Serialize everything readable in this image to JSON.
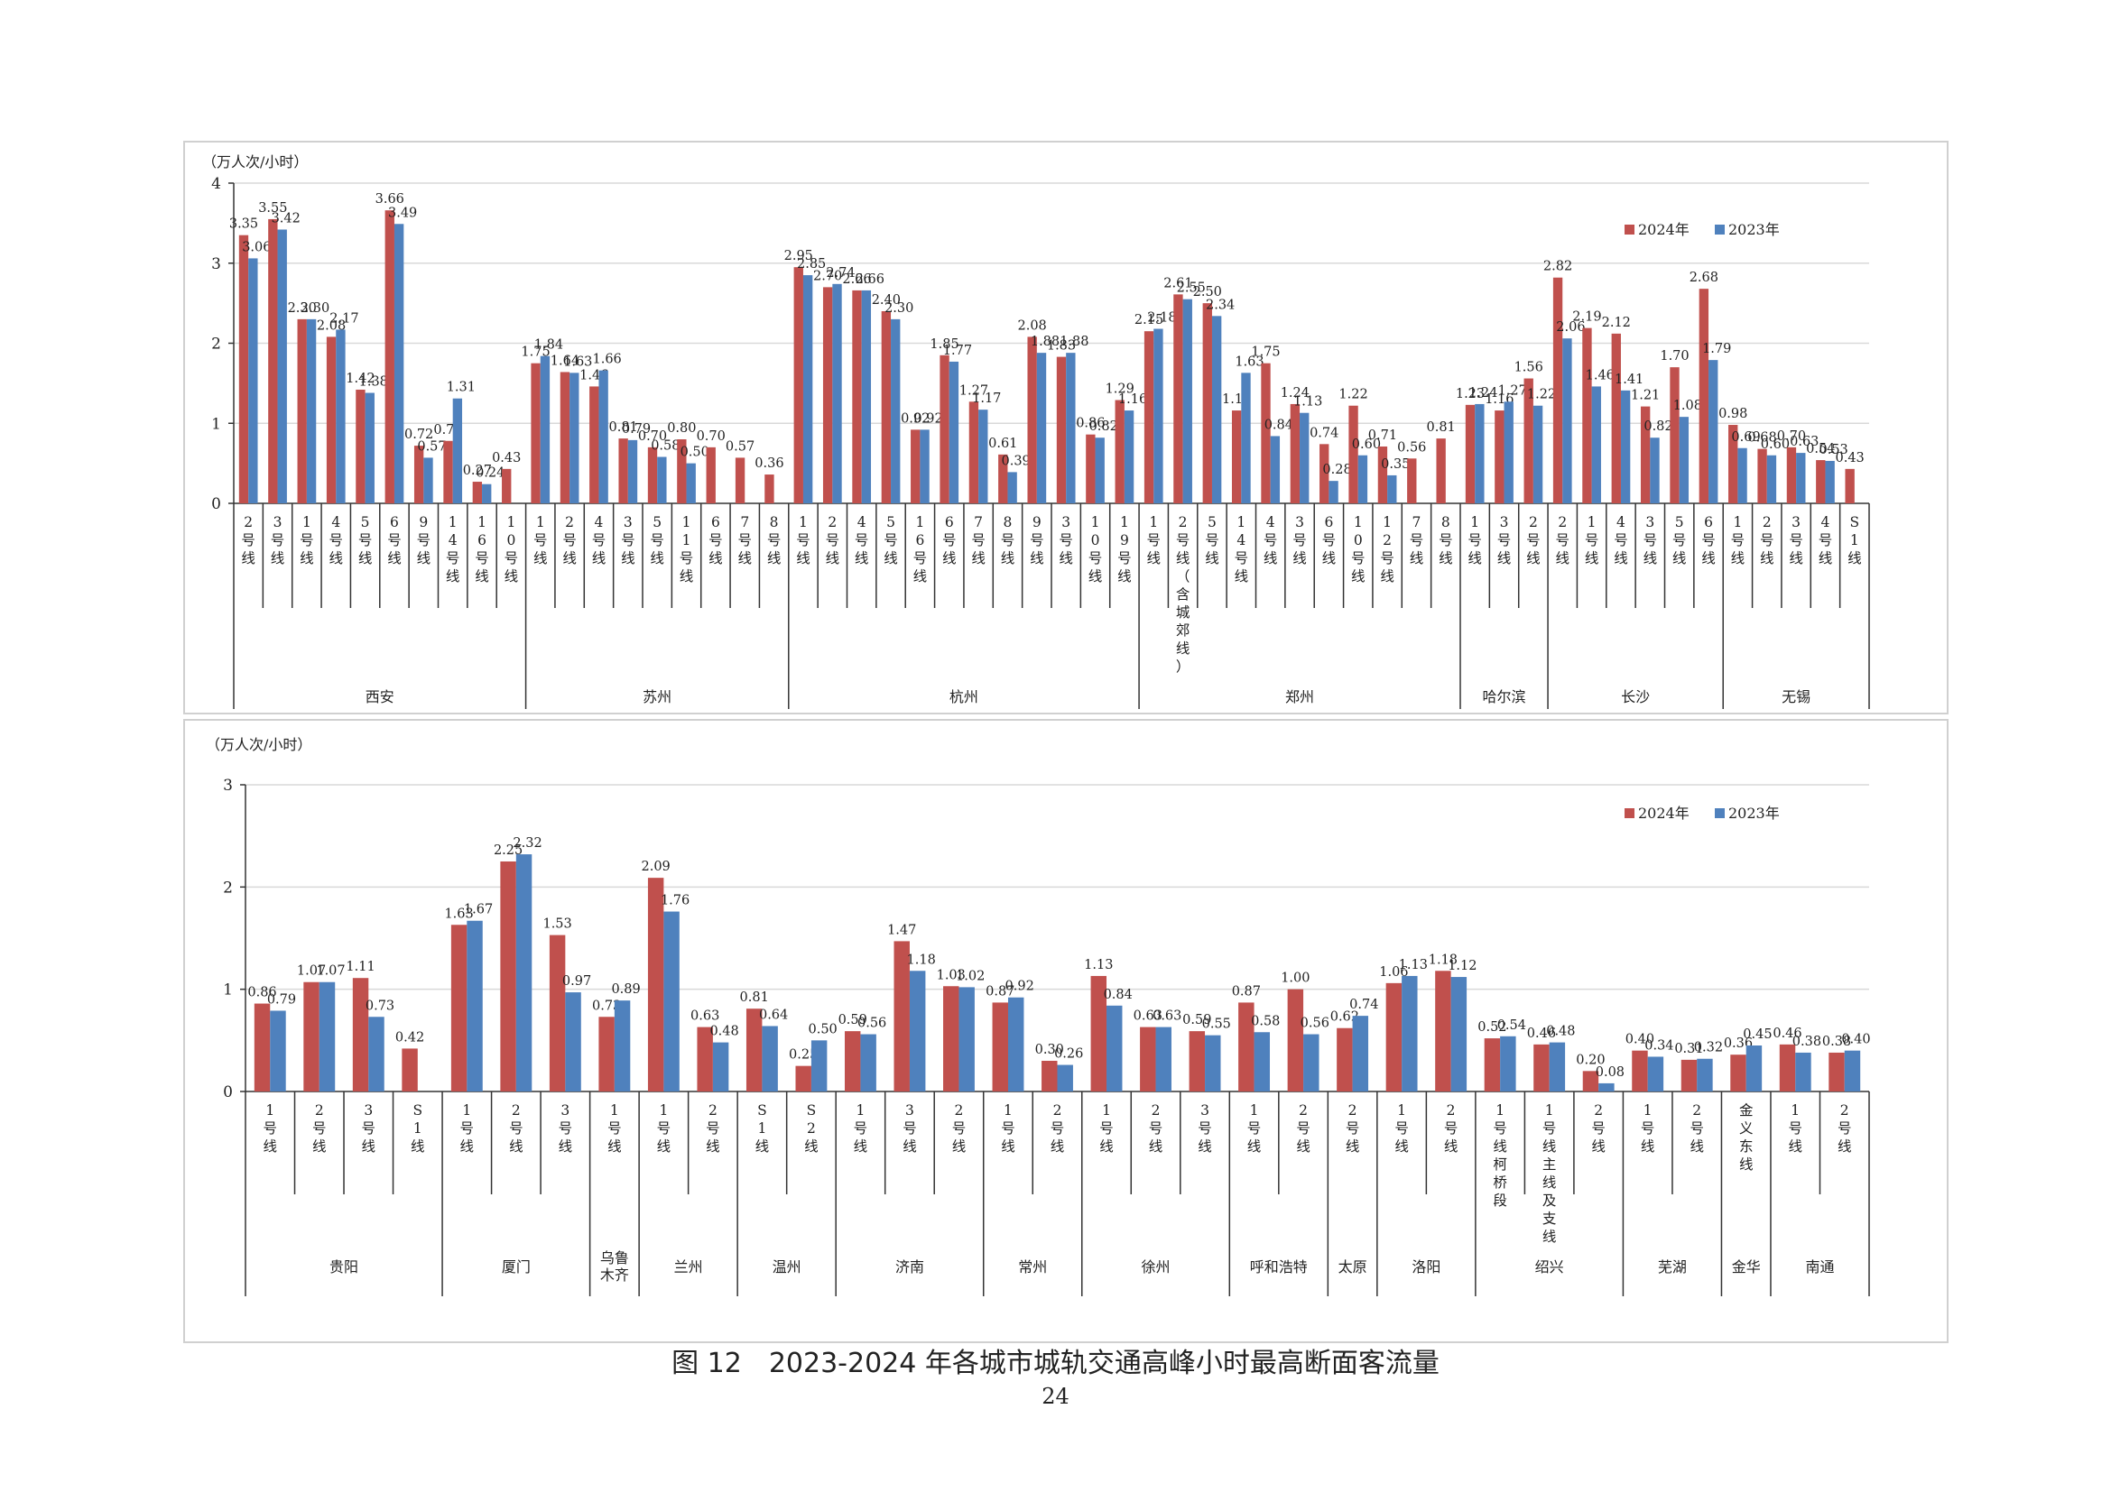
{
  "chart_data": [
    {
      "type": "bar",
      "unit_label": "（万人次/小时）",
      "ylim": [
        0,
        4
      ],
      "yticks": [
        "0",
        "1",
        "2",
        "3",
        "4"
      ],
      "legend": [
        "2024年",
        "2023年"
      ],
      "legend_position": "top-right",
      "colors": {
        "y2024": "#c0504d",
        "y2023": "#4f81bd"
      },
      "groups": [
        {
          "city": "西安",
          "lines": [
            {
              "label": "2号线",
              "v2024": 3.35,
              "v2023": 3.06
            },
            {
              "label": "3号线",
              "v2024": 3.55,
              "v2023": 3.42
            },
            {
              "label": "1号线",
              "v2024": 2.3,
              "v2023": 2.3
            },
            {
              "label": "4号线",
              "v2024": 2.08,
              "v2023": 2.17
            },
            {
              "label": "5号线",
              "v2024": 1.42,
              "v2023": 1.38
            },
            {
              "label": "6号线",
              "v2024": 3.66,
              "v2023": 3.49
            },
            {
              "label": "9号线",
              "v2024": 0.72,
              "v2023": 0.57
            },
            {
              "label": "14号线",
              "v2024": 0.78,
              "v2023": 1.31
            },
            {
              "label": "16号线",
              "v2024": 0.27,
              "v2023": 0.24
            },
            {
              "label": "10号线",
              "v2024": 0.43,
              "v2023": null
            }
          ]
        },
        {
          "city": "苏州",
          "lines": [
            {
              "label": "1号线",
              "v2024": 1.75,
              "v2023": 1.84
            },
            {
              "label": "2号线",
              "v2024": 1.64,
              "v2023": 1.63
            },
            {
              "label": "4号线",
              "v2024": 1.46,
              "v2023": 1.66
            },
            {
              "label": "3号线",
              "v2024": 0.81,
              "v2023": 0.79
            },
            {
              "label": "5号线",
              "v2024": 0.7,
              "v2023": 0.58
            },
            {
              "label": "11号线",
              "v2024": 0.8,
              "v2023": 0.5
            },
            {
              "label": "6号线",
              "v2024": 0.7,
              "v2023": null
            },
            {
              "label": "7号线",
              "v2024": 0.57,
              "v2023": null
            },
            {
              "label": "8号线",
              "v2024": 0.36,
              "v2023": null
            }
          ]
        },
        {
          "city": "杭州",
          "lines": [
            {
              "label": "1号线",
              "v2024": 2.95,
              "v2023": 2.85
            },
            {
              "label": "2号线",
              "v2024": 2.7,
              "v2023": 2.74
            },
            {
              "label": "4号线",
              "v2024": 2.66,
              "v2023": 2.66
            },
            {
              "label": "5号线",
              "v2024": 2.4,
              "v2023": 2.3
            },
            {
              "label": "16号线",
              "v2024": 0.92,
              "v2023": 0.92
            },
            {
              "label": "6号线",
              "v2024": 1.85,
              "v2023": 1.77
            },
            {
              "label": "7号线",
              "v2024": 1.27,
              "v2023": 1.17
            },
            {
              "label": "8号线",
              "v2024": 0.61,
              "v2023": 0.39
            },
            {
              "label": "9号线",
              "v2024": 2.08,
              "v2023": 1.88
            },
            {
              "label": "3号线",
              "v2024": 1.83,
              "v2023": 1.88
            },
            {
              "label": "10号线",
              "v2024": 0.86,
              "v2023": 0.82
            },
            {
              "label": "19号线",
              "v2024": 1.29,
              "v2023": 1.16
            }
          ]
        },
        {
          "city": "郑州",
          "lines": [
            {
              "label": "1号线",
              "v2024": 2.15,
              "v2023": 2.18
            },
            {
              "label": "2号线（含城郊线）",
              "v2024": 2.61,
              "v2023": 2.55
            },
            {
              "label": "5号线",
              "v2024": 2.5,
              "v2023": 2.34
            },
            {
              "label": "14号线",
              "v2024": 1.16,
              "v2023": 1.63
            },
            {
              "label": "4号线",
              "v2024": 1.75,
              "v2023": 0.84
            },
            {
              "label": "3号线",
              "v2024": 1.24,
              "v2023": 1.13
            },
            {
              "label": "6号线",
              "v2024": 0.74,
              "v2023": 0.28
            },
            {
              "label": "10号线",
              "v2024": 1.22,
              "v2023": 0.6
            },
            {
              "label": "12号线",
              "v2024": 0.71,
              "v2023": 0.35
            },
            {
              "label": "7号线",
              "v2024": 0.56,
              "v2023": null
            },
            {
              "label": "8号线",
              "v2024": 0.81,
              "v2023": null
            }
          ]
        },
        {
          "city": "哈尔滨",
          "lines": [
            {
              "label": "1号线",
              "v2024": 1.23,
              "v2023": 1.24
            },
            {
              "label": "3号线",
              "v2024": 1.16,
              "v2023": 1.27
            },
            {
              "label": "2号线",
              "v2024": 1.56,
              "v2023": 1.22
            }
          ]
        },
        {
          "city": "长沙",
          "lines": [
            {
              "label": "2号线",
              "v2024": 2.82,
              "v2023": 2.06
            },
            {
              "label": "1号线",
              "v2024": 2.19,
              "v2023": 1.46
            },
            {
              "label": "4号线",
              "v2024": 2.12,
              "v2023": 1.41
            },
            {
              "label": "3号线",
              "v2024": 1.21,
              "v2023": 0.82
            },
            {
              "label": "5号线",
              "v2024": 1.7,
              "v2023": 1.08
            },
            {
              "label": "6号线",
              "v2024": 2.68,
              "v2023": 1.79
            }
          ]
        },
        {
          "city": "无锡",
          "lines": [
            {
              "label": "1号线",
              "v2024": 0.98,
              "v2023": 0.69
            },
            {
              "label": "2号线",
              "v2024": 0.68,
              "v2023": 0.6
            },
            {
              "label": "3号线",
              "v2024": 0.7,
              "v2023": 0.63
            },
            {
              "label": "4号线",
              "v2024": 0.54,
              "v2023": 0.53
            },
            {
              "label": "S1线",
              "v2024": 0.43,
              "v2023": null
            }
          ]
        }
      ]
    },
    {
      "type": "bar",
      "unit_label": "（万人次/小时）",
      "ylim": [
        0,
        3
      ],
      "yticks": [
        "0",
        "1",
        "2",
        "3"
      ],
      "legend": [
        "2024年",
        "2023年"
      ],
      "legend_position": "top-right",
      "colors": {
        "y2024": "#c0504d",
        "y2023": "#4f81bd"
      },
      "groups": [
        {
          "city": "贵阳",
          "lines": [
            {
              "label": "1号线",
              "v2024": 0.86,
              "v2023": 0.79
            },
            {
              "label": "2号线",
              "v2024": 1.07,
              "v2023": 1.07
            },
            {
              "label": "3号线",
              "v2024": 1.11,
              "v2023": 0.73
            },
            {
              "label": "S1线",
              "v2024": 0.42,
              "v2023": null
            }
          ]
        },
        {
          "city": "厦门",
          "lines": [
            {
              "label": "1号线",
              "v2024": 1.63,
              "v2023": 1.67
            },
            {
              "label": "2号线",
              "v2024": 2.25,
              "v2023": 2.32
            },
            {
              "label": "3号线",
              "v2024": 1.53,
              "v2023": 0.97
            }
          ]
        },
        {
          "city": "乌鲁木齐",
          "lines": [
            {
              "label": "1号线",
              "v2024": 0.73,
              "v2023": 0.89
            }
          ]
        },
        {
          "city": "兰州",
          "lines": [
            {
              "label": "1号线",
              "v2024": 2.09,
              "v2023": 1.76
            },
            {
              "label": "2号线",
              "v2024": 0.63,
              "v2023": 0.48
            }
          ]
        },
        {
          "city": "温州",
          "lines": [
            {
              "label": "S1线",
              "v2024": 0.81,
              "v2023": 0.64
            },
            {
              "label": "S2线",
              "v2024": 0.25,
              "v2023": 0.5
            }
          ]
        },
        {
          "city": "济南",
          "lines": [
            {
              "label": "1号线",
              "v2024": 0.59,
              "v2023": 0.56
            },
            {
              "label": "3号线",
              "v2024": 1.47,
              "v2023": 1.18
            },
            {
              "label": "2号线",
              "v2024": 1.03,
              "v2023": 1.02
            }
          ]
        },
        {
          "city": "常州",
          "lines": [
            {
              "label": "1号线",
              "v2024": 0.87,
              "v2023": 0.92
            },
            {
              "label": "2号线",
              "v2024": 0.3,
              "v2023": 0.26
            }
          ]
        },
        {
          "city": "徐州",
          "lines": [
            {
              "label": "1号线",
              "v2024": 1.13,
              "v2023": 0.84
            },
            {
              "label": "2号线",
              "v2024": 0.63,
              "v2023": 0.63
            },
            {
              "label": "3号线",
              "v2024": 0.59,
              "v2023": 0.55
            }
          ]
        },
        {
          "city": "呼和浩特",
          "lines": [
            {
              "label": "1号线",
              "v2024": 0.87,
              "v2023": 0.58
            },
            {
              "label": "2号线",
              "v2024": 1.0,
              "v2023": 0.56
            }
          ]
        },
        {
          "city": "太原",
          "lines": [
            {
              "label": "2号线",
              "v2024": 0.62,
              "v2023": 0.74
            }
          ]
        },
        {
          "city": "洛阳",
          "lines": [
            {
              "label": "1号线",
              "v2024": 1.06,
              "v2023": 1.13
            },
            {
              "label": "2号线",
              "v2024": 1.18,
              "v2023": 1.12
            }
          ]
        },
        {
          "city": "绍兴",
          "lines": [
            {
              "label": "1号线柯桥段",
              "v2024": 0.52,
              "v2023": 0.54
            },
            {
              "label": "1号线主线及支线",
              "v2024": 0.46,
              "v2023": 0.48
            },
            {
              "label": "2号线",
              "v2024": 0.2,
              "v2023": 0.08
            }
          ]
        },
        {
          "city": "芜湖",
          "lines": [
            {
              "label": "1号线",
              "v2024": 0.4,
              "v2023": 0.34
            },
            {
              "label": "2号线",
              "v2024": 0.31,
              "v2023": 0.32
            }
          ]
        },
        {
          "city": "金华",
          "lines": [
            {
              "label": "金义东线",
              "v2024": 0.36,
              "v2023": 0.45
            }
          ]
        },
        {
          "city": "南通",
          "lines": [
            {
              "label": "1号线",
              "v2024": 0.46,
              "v2023": 0.38
            },
            {
              "label": "2号线",
              "v2024": 0.38,
              "v2023": 0.4
            }
          ]
        }
      ]
    }
  ],
  "caption": "图 12　2023-2024 年各城市城轨交通高峰小时最高断面客流量",
  "page_number": "24"
}
